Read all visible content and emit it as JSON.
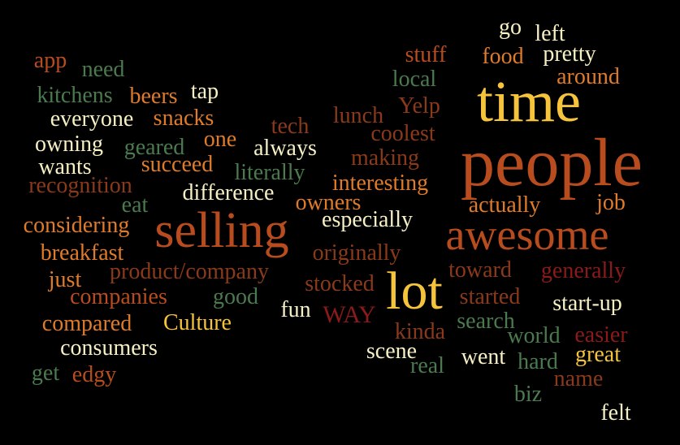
{
  "words": [
    {
      "id": "app",
      "text": "app",
      "color": "rust"
    },
    {
      "id": "need",
      "text": "need",
      "color": "green"
    },
    {
      "id": "kitchens",
      "text": "kitchens",
      "color": "green"
    },
    {
      "id": "beers",
      "text": "beers",
      "color": "orange"
    },
    {
      "id": "tap",
      "text": "tap",
      "color": "cream"
    },
    {
      "id": "everyone",
      "text": "everyone",
      "color": "cream"
    },
    {
      "id": "snacks",
      "text": "snacks",
      "color": "orange"
    },
    {
      "id": "owning",
      "text": "owning",
      "color": "cream"
    },
    {
      "id": "geared",
      "text": "geared",
      "color": "green"
    },
    {
      "id": "one",
      "text": "one",
      "color": "orange"
    },
    {
      "id": "wants",
      "text": "wants",
      "color": "cream"
    },
    {
      "id": "succeed",
      "text": "succeed",
      "color": "orange"
    },
    {
      "id": "recognition",
      "text": "recognition",
      "color": "brown"
    },
    {
      "id": "eat",
      "text": "eat",
      "color": "green"
    },
    {
      "id": "considering",
      "text": "considering",
      "color": "orange"
    },
    {
      "id": "breakfast",
      "text": "breakfast",
      "color": "orange"
    },
    {
      "id": "just",
      "text": "just",
      "color": "orange"
    },
    {
      "id": "product_company",
      "text": "product/company",
      "color": "brown"
    },
    {
      "id": "companies",
      "text": "companies",
      "color": "rust"
    },
    {
      "id": "compared",
      "text": "compared",
      "color": "orange"
    },
    {
      "id": "culture",
      "text": "Culture",
      "color": "yellow"
    },
    {
      "id": "consumers",
      "text": "consumers",
      "color": "cream"
    },
    {
      "id": "get",
      "text": "get",
      "color": "green"
    },
    {
      "id": "edgy",
      "text": "edgy",
      "color": "rust"
    },
    {
      "id": "tech",
      "text": "tech",
      "color": "brown"
    },
    {
      "id": "always",
      "text": "always",
      "color": "cream"
    },
    {
      "id": "literally",
      "text": "literally",
      "color": "green"
    },
    {
      "id": "difference",
      "text": "difference",
      "color": "cream"
    },
    {
      "id": "selling",
      "text": "selling",
      "color": "rust"
    },
    {
      "id": "good",
      "text": "good",
      "color": "green"
    },
    {
      "id": "fun",
      "text": "fun",
      "color": "cream"
    },
    {
      "id": "way",
      "text": "WAY",
      "color": "red"
    },
    {
      "id": "stuff",
      "text": "stuff",
      "color": "rust"
    },
    {
      "id": "go",
      "text": "go",
      "color": "cream"
    },
    {
      "id": "left",
      "text": "left",
      "color": "cream"
    },
    {
      "id": "food",
      "text": "food",
      "color": "orange"
    },
    {
      "id": "pretty",
      "text": "pretty",
      "color": "cream"
    },
    {
      "id": "local",
      "text": "local",
      "color": "green"
    },
    {
      "id": "around",
      "text": "around",
      "color": "orange"
    },
    {
      "id": "time",
      "text": "time",
      "color": "yellow"
    },
    {
      "id": "lunch",
      "text": "lunch",
      "color": "brown"
    },
    {
      "id": "yelp",
      "text": "Yelp",
      "color": "brown"
    },
    {
      "id": "coolest",
      "text": "coolest",
      "color": "brown"
    },
    {
      "id": "making",
      "text": "making",
      "color": "brown"
    },
    {
      "id": "people",
      "text": "people",
      "color": "rust"
    },
    {
      "id": "interesting",
      "text": "interesting",
      "color": "orange"
    },
    {
      "id": "owners",
      "text": "owners",
      "color": "orange"
    },
    {
      "id": "especially",
      "text": "especially",
      "color": "cream"
    },
    {
      "id": "actually",
      "text": "actually",
      "color": "orange"
    },
    {
      "id": "job",
      "text": "job",
      "color": "orange"
    },
    {
      "id": "awesome",
      "text": "awesome",
      "color": "rust"
    },
    {
      "id": "originally",
      "text": "originally",
      "color": "brown"
    },
    {
      "id": "toward",
      "text": "toward",
      "color": "brown"
    },
    {
      "id": "generally",
      "text": "generally",
      "color": "red"
    },
    {
      "id": "stocked",
      "text": "stocked",
      "color": "brown"
    },
    {
      "id": "lot",
      "text": "lot",
      "color": "yellow"
    },
    {
      "id": "started",
      "text": "started",
      "color": "brown"
    },
    {
      "id": "start_up",
      "text": "start-up",
      "color": "cream"
    },
    {
      "id": "search",
      "text": "search",
      "color": "green"
    },
    {
      "id": "kinda",
      "text": "kinda",
      "color": "brown"
    },
    {
      "id": "world",
      "text": "world",
      "color": "green"
    },
    {
      "id": "easier",
      "text": "easier",
      "color": "red"
    },
    {
      "id": "scene",
      "text": "scene",
      "color": "cream"
    },
    {
      "id": "real",
      "text": "real",
      "color": "green"
    },
    {
      "id": "went",
      "text": "went",
      "color": "cream"
    },
    {
      "id": "hard",
      "text": "hard",
      "color": "green"
    },
    {
      "id": "great",
      "text": "great",
      "color": "yellow"
    },
    {
      "id": "name",
      "text": "name",
      "color": "brown"
    },
    {
      "id": "biz",
      "text": "biz",
      "color": "green"
    },
    {
      "id": "felt",
      "text": "felt",
      "color": "cream"
    }
  ]
}
